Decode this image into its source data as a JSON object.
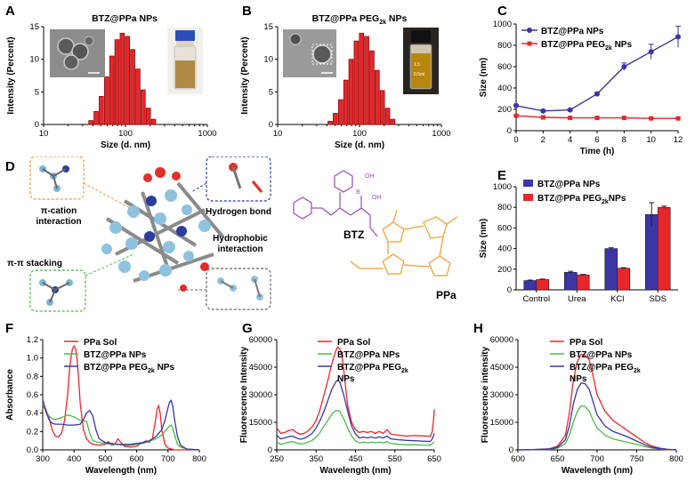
{
  "panels": {
    "A": {
      "label": "A",
      "title": "BTZ@PPa NPs",
      "xlabel": "Size (d. nm)",
      "ylabel": "Intensity (Percent)",
      "xticks": [
        "10",
        "100",
        "1000"
      ],
      "yticks": [
        "0",
        "5",
        "10",
        "15"
      ]
    },
    "B": {
      "label": "B",
      "title": "BTZ@PPa PEG₂k NPs",
      "title_main": "BTZ@PPa PEG",
      "title_sub": "2k",
      "title_tail": " NPs",
      "xlabel": "Size (d. nm)",
      "ylabel": "Intensity (Percent)",
      "xticks": [
        "10",
        "100",
        "1000"
      ],
      "yticks": [
        "0",
        "5",
        "10",
        "15"
      ],
      "vial_label_1": "1.5",
      "vial_label_2": "0.5ml"
    },
    "C": {
      "label": "C",
      "xlabel": "Time (h)",
      "ylabel": "Size (nm)",
      "xticks": [
        "0",
        "2",
        "4",
        "6",
        "8",
        "10",
        "12"
      ],
      "yticks": [
        "0",
        "200",
        "400",
        "600",
        "800",
        "1000"
      ],
      "legend": [
        "BTZ@PPa NPs",
        "BTZ@PPa PEG₂k NPs"
      ],
      "legend2_main": "BTZ@PPa PEG",
      "legend2_sub": "2k",
      "legend2_tail": " NPs"
    },
    "D": {
      "label": "D",
      "pi_cation": "π-cation\ninteraction",
      "pi_cation_1": "π-cation",
      "pi_cation_2": "interaction",
      "pi_pi": "π-π stacking",
      "hbond": "Hydrogen bond",
      "hydrophobic_1": "Hydrophobic",
      "hydrophobic_2": "interaction",
      "btz": "BTZ",
      "ppa": "PPa",
      "oh1": "OH",
      "oh2": "OH",
      "b": "B"
    },
    "E": {
      "label": "E",
      "ylabel": "Size (nm)",
      "yticks": [
        "0",
        "200",
        "400",
        "600",
        "800",
        "1000"
      ],
      "legend": [
        "BTZ@PPa NPs",
        "BTZ@PPa PEG₂kNPs"
      ],
      "legend2_main": "BTZ@PPa PEG",
      "legend2_sub": "2k",
      "legend2_tail": "NPs"
    },
    "F": {
      "label": "F",
      "xlabel": "Wavelength (nm)",
      "ylabel": "Absorbance",
      "xticks": [
        "300",
        "400",
        "500",
        "600",
        "700",
        "800"
      ],
      "yticks": [
        "0.0",
        "0.2",
        "0.4",
        "0.6",
        "0.8",
        "1.0",
        "1.2"
      ],
      "legend": [
        "PPa Sol",
        "BTZ@PPa NPs",
        "BTZ@PPa PEG₂k NPs"
      ],
      "legend3_main": "BTZ@PPa PEG",
      "legend3_sub": "2k",
      "legend3_tail": " NPs"
    },
    "G": {
      "label": "G",
      "xlabel": "Wavelength (nm)",
      "ylabel": "Fluorescence Intensity",
      "xticks": [
        "250",
        "350",
        "450",
        "550",
        "650"
      ],
      "yticks": [
        "0",
        "15000",
        "30000",
        "45000",
        "60000"
      ],
      "legend": [
        "PPa Sol",
        "BTZ@PPa NPs",
        "BTZ@PPa PEG₂k NPs"
      ],
      "legend3_main": "BTZ@PPa PEG",
      "legend3_sub": "2k",
      "legend3_line2": "NPs"
    },
    "H": {
      "label": "H",
      "xlabel": "Wavelength (nm)",
      "ylabel": "Fluorescence intensity",
      "xticks": [
        "600",
        "650",
        "700",
        "750",
        "800"
      ],
      "yticks": [
        "0",
        "15000",
        "30000",
        "45000",
        "60000"
      ],
      "legend": [
        "PPa Sol",
        "BTZ@PPa NPs",
        "BTZ@PPa PEG₂k NPs"
      ],
      "legend3_main": "BTZ@PPa PEG",
      "legend3_sub": "2k",
      "legend3_line2": "NPs"
    }
  },
  "colors": {
    "red": "#e8262a",
    "blue": "#3b35a6",
    "green": "#4db848",
    "darkred": "#8b0d0d",
    "orange": "#f39c2b",
    "purple": "#a04bb5"
  },
  "chart_data": [
    {
      "id": "A",
      "type": "bar",
      "xscale": "log",
      "xlim": [
        10,
        1000
      ],
      "ylim": [
        0,
        15
      ],
      "x": [
        37.8,
        43.8,
        50.7,
        58.8,
        68.1,
        78.8,
        91.3,
        105.7,
        122.4,
        141.8,
        164.2,
        190.1,
        220.2
      ],
      "values": [
        0.6,
        2.0,
        4.3,
        7.3,
        10.5,
        13.0,
        14.0,
        13.5,
        11.5,
        8.5,
        5.3,
        2.5,
        0.8
      ]
    },
    {
      "id": "B",
      "type": "bar",
      "xscale": "log",
      "xlim": [
        10,
        1000
      ],
      "ylim": [
        0,
        15
      ],
      "x": [
        43.8,
        50.7,
        58.8,
        68.1,
        78.8,
        91.3,
        105.7,
        122.4,
        141.8,
        164.2,
        190.1,
        220.2,
        255.0
      ],
      "values": [
        0.5,
        1.7,
        3.8,
        6.8,
        10.0,
        12.8,
        14.0,
        13.5,
        11.3,
        8.3,
        5.2,
        2.5,
        0.8
      ]
    },
    {
      "id": "C",
      "type": "line",
      "xlim": [
        0,
        12
      ],
      "ylim": [
        0,
        1000
      ],
      "x": [
        0,
        2,
        4,
        6,
        8,
        10,
        12
      ],
      "series": [
        {
          "name": "BTZ@PPa NPs",
          "values": [
            235,
            185,
            195,
            345,
            600,
            740,
            880
          ],
          "errors": [
            8,
            10,
            10,
            15,
            35,
            70,
            100
          ]
        },
        {
          "name": "BTZ@PPa PEG2k NPs",
          "values": [
            140,
            125,
            120,
            120,
            120,
            115,
            115
          ],
          "errors": [
            5,
            5,
            5,
            5,
            5,
            5,
            5
          ]
        }
      ]
    },
    {
      "id": "E",
      "type": "bar",
      "ylim": [
        0,
        1000
      ],
      "categories": [
        "Control",
        "Urea",
        "KCl",
        "SDS"
      ],
      "series": [
        {
          "name": "BTZ@PPa NPs",
          "values": [
            90,
            170,
            400,
            730
          ],
          "errors": [
            5,
            10,
            8,
            115
          ]
        },
        {
          "name": "BTZ@PPa PEG2k NPs",
          "values": [
            100,
            145,
            210,
            800
          ],
          "errors": [
            5,
            5,
            5,
            12
          ]
        }
      ]
    },
    {
      "id": "F",
      "type": "line",
      "xlim": [
        300,
        800
      ],
      "ylim": [
        0,
        1.2
      ],
      "series": [
        {
          "name": "PPa Sol",
          "x": [
            300,
            310,
            320,
            330,
            340,
            350,
            360,
            370,
            380,
            385,
            390,
            395,
            400,
            405,
            410,
            415,
            420,
            430,
            440,
            450,
            460,
            480,
            500,
            510,
            520,
            530,
            540,
            560,
            580,
            600,
            620,
            630,
            640,
            650,
            660,
            665,
            670,
            675,
            680,
            690,
            700,
            720,
            750,
            800
          ],
          "values": [
            0.52,
            0.44,
            0.35,
            0.22,
            0.15,
            0.14,
            0.18,
            0.32,
            0.62,
            0.85,
            1.0,
            1.1,
            1.13,
            1.1,
            0.98,
            0.75,
            0.5,
            0.22,
            0.12,
            0.08,
            0.06,
            0.05,
            0.06,
            0.09,
            0.05,
            0.06,
            0.12,
            0.04,
            0.03,
            0.04,
            0.08,
            0.1,
            0.08,
            0.12,
            0.32,
            0.44,
            0.48,
            0.4,
            0.22,
            0.06,
            0.02,
            0.0,
            0.0,
            0.0
          ]
        },
        {
          "name": "BTZ@PPa NPs",
          "x": [
            300,
            310,
            320,
            330,
            340,
            360,
            380,
            400,
            410,
            420,
            440,
            450,
            460,
            480,
            500,
            520,
            540,
            560,
            580,
            600,
            620,
            640,
            660,
            680,
            690,
            700,
            705,
            710,
            715,
            720,
            730,
            740,
            760,
            800
          ],
          "values": [
            0.5,
            0.42,
            0.37,
            0.34,
            0.33,
            0.35,
            0.38,
            0.36,
            0.34,
            0.32,
            0.31,
            0.18,
            0.1,
            0.08,
            0.07,
            0.06,
            0.06,
            0.05,
            0.05,
            0.06,
            0.07,
            0.09,
            0.12,
            0.16,
            0.2,
            0.24,
            0.26,
            0.27,
            0.24,
            0.18,
            0.06,
            0.03,
            0.01,
            0.0
          ]
        },
        {
          "name": "BTZ@PPa PEG2k NPs",
          "x": [
            300,
            310,
            320,
            330,
            340,
            360,
            380,
            400,
            420,
            430,
            440,
            450,
            460,
            470,
            480,
            500,
            520,
            540,
            560,
            580,
            600,
            620,
            640,
            660,
            680,
            690,
            700,
            705,
            710,
            715,
            720,
            730,
            740,
            760,
            800
          ],
          "values": [
            0.55,
            0.42,
            0.33,
            0.29,
            0.28,
            0.28,
            0.27,
            0.27,
            0.28,
            0.33,
            0.4,
            0.43,
            0.37,
            0.22,
            0.12,
            0.08,
            0.07,
            0.06,
            0.06,
            0.06,
            0.07,
            0.08,
            0.1,
            0.14,
            0.22,
            0.32,
            0.46,
            0.52,
            0.54,
            0.48,
            0.35,
            0.15,
            0.05,
            0.01,
            0.0
          ]
        }
      ]
    },
    {
      "id": "G",
      "type": "line",
      "xlim": [
        250,
        650
      ],
      "ylim": [
        0,
        60000
      ],
      "series": [
        {
          "name": "PPa Sol",
          "x": [
            250,
            260,
            270,
            280,
            290,
            300,
            310,
            320,
            330,
            340,
            350,
            360,
            370,
            380,
            390,
            400,
            405,
            410,
            415,
            420,
            425,
            430,
            440,
            450,
            460,
            470,
            480,
            490,
            500,
            510,
            520,
            530,
            540,
            560,
            580,
            600,
            620,
            640,
            645,
            648,
            650
          ],
          "values": [
            12000,
            9000,
            9500,
            10500,
            11000,
            9500,
            8500,
            9000,
            10500,
            12500,
            16000,
            22000,
            30000,
            38000,
            47000,
            54000,
            56000,
            55000,
            52000,
            44000,
            34000,
            24000,
            15000,
            11000,
            9500,
            10000,
            9500,
            10000,
            9000,
            10000,
            9000,
            11000,
            8500,
            8000,
            7500,
            7800,
            7600,
            7400,
            10000,
            16000,
            22000
          ]
        },
        {
          "name": "BTZ@PPa NPs",
          "x": [
            250,
            260,
            270,
            280,
            290,
            300,
            310,
            320,
            330,
            340,
            350,
            360,
            370,
            380,
            390,
            400,
            410,
            420,
            430,
            440,
            450,
            460,
            470,
            480,
            490,
            500,
            510,
            520,
            530,
            540,
            560,
            580,
            600,
            620,
            640,
            645,
            650
          ],
          "values": [
            4500,
            3000,
            3500,
            4200,
            4500,
            3800,
            3200,
            3500,
            4200,
            5200,
            7000,
            9500,
            13000,
            16000,
            19500,
            21500,
            21000,
            17000,
            12000,
            7500,
            5000,
            3800,
            4200,
            3800,
            4200,
            3800,
            4200,
            3800,
            4500,
            3500,
            3000,
            2800,
            2800,
            2600,
            2500,
            3500,
            4500
          ]
        },
        {
          "name": "BTZ@PPa PEG2k NPs",
          "x": [
            250,
            260,
            270,
            280,
            290,
            300,
            310,
            320,
            330,
            340,
            350,
            360,
            370,
            380,
            390,
            400,
            405,
            410,
            420,
            430,
            440,
            450,
            460,
            470,
            480,
            490,
            500,
            510,
            520,
            530,
            540,
            560,
            580,
            600,
            620,
            640,
            645,
            650
          ],
          "values": [
            8000,
            6000,
            6500,
            7200,
            7500,
            6500,
            5800,
            6300,
            7500,
            9000,
            12000,
            16000,
            21000,
            27000,
            33000,
            37000,
            38000,
            37000,
            30000,
            21000,
            13000,
            8500,
            6500,
            7000,
            6500,
            7000,
            6500,
            7000,
            6500,
            7500,
            6000,
            5500,
            5200,
            5000,
            4800,
            4600,
            6000,
            9000
          ]
        }
      ]
    },
    {
      "id": "H",
      "type": "line",
      "xlim": [
        600,
        800
      ],
      "ylim": [
        0,
        60000
      ],
      "series": [
        {
          "name": "PPa Sol",
          "x": [
            600,
            620,
            640,
            650,
            660,
            665,
            670,
            675,
            680,
            685,
            690,
            695,
            700,
            710,
            720,
            730,
            740,
            750,
            760,
            770,
            780,
            790,
            800
          ],
          "values": [
            0,
            200,
            700,
            2000,
            8000,
            20000,
            38000,
            48000,
            52000,
            51500,
            49000,
            40000,
            30000,
            21000,
            16000,
            13000,
            10000,
            7000,
            4000,
            2000,
            900,
            300,
            100
          ]
        },
        {
          "name": "BTZ@PPa NPs",
          "x": [
            600,
            620,
            640,
            650,
            660,
            665,
            670,
            675,
            680,
            685,
            690,
            695,
            700,
            710,
            720,
            730,
            740,
            750,
            760,
            770,
            780,
            790,
            800
          ],
          "values": [
            0,
            100,
            300,
            900,
            3500,
            8000,
            15000,
            21000,
            24000,
            23500,
            21000,
            16000,
            12000,
            8000,
            6000,
            5000,
            4000,
            3000,
            1800,
            900,
            400,
            150,
            50
          ]
        },
        {
          "name": "BTZ@PPa PEG2k NPs",
          "x": [
            600,
            620,
            640,
            650,
            660,
            665,
            670,
            675,
            680,
            685,
            690,
            695,
            700,
            710,
            720,
            730,
            740,
            750,
            760,
            770,
            780,
            790,
            800
          ],
          "values": [
            0,
            150,
            500,
            1400,
            5500,
            13000,
            25000,
            33000,
            36500,
            36000,
            33000,
            26000,
            19000,
            13000,
            10000,
            8500,
            6800,
            4800,
            2800,
            1400,
            600,
            200,
            80
          ]
        }
      ]
    }
  ]
}
